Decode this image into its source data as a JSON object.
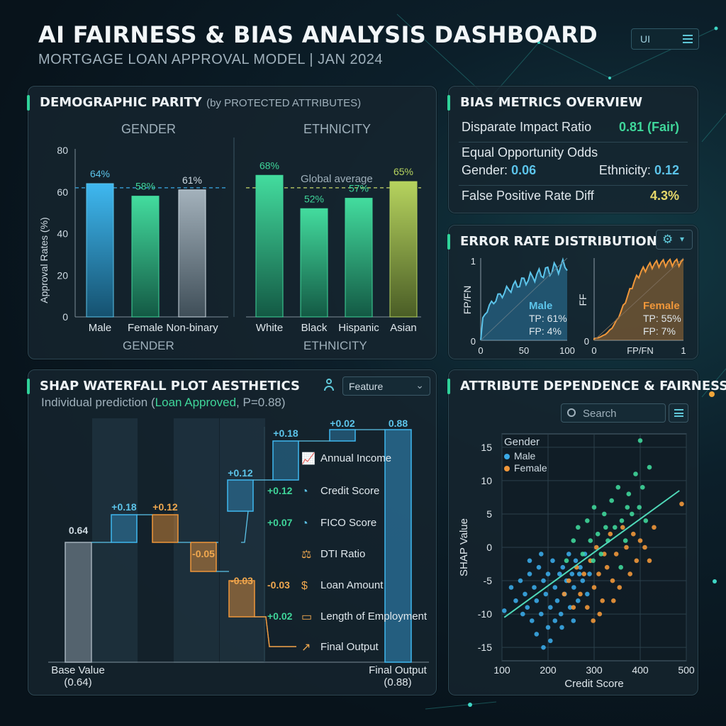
{
  "header": {
    "title": "AI FAIRNESS & BIAS ANALYSIS DASHBOARD",
    "subtitle": "MORTGAGE LOAN APPROVAL MODEL | JAN 2024",
    "ui_label": "UI"
  },
  "demographic": {
    "title": "DEMOGRAPHIC PARITY",
    "title_note": "(by PROTECTED ATTRIBUTES)",
    "gender_head": "GENDER",
    "ethnicity_head": "ETHNICITY",
    "gender_foot": "GENDER",
    "ethnicity_foot": "ETHNICITY",
    "ylabel": "Approval Rates (%)",
    "global_label": "Global average"
  },
  "bias": {
    "title": "BIAS METRICS OVERVIEW",
    "dir_label": "Disparate Impact Ratio",
    "dir_value": "0.81 (Fair)",
    "eoo_label": "Equal Opportunity Odds",
    "gender_label": "Gender:",
    "gender_value": "0.06",
    "eth_label": "Ethnicity:",
    "eth_value": "0.12",
    "fpr_label": "False Positive Rate Diff",
    "fpr_value": "4.3%"
  },
  "error": {
    "title": "ERROR RATE DISTRIBUTION",
    "left": {
      "ylabel": "FP/FN",
      "group": "Male",
      "tp": "TP: 61%",
      "fp": "FP: 4%",
      "x0": "0",
      "x1": "50",
      "x2": "100",
      "y0": "0",
      "ytop": "1"
    },
    "right": {
      "ylabel": "FF",
      "group": "Female",
      "tp": "TP: 55%",
      "fp": "FP: 7%",
      "x0": "0",
      "xlab": "FP/FN",
      "x2": "1",
      "y0": "0"
    }
  },
  "shap": {
    "title": "SHAP WATERFALL PLOT AESTHETICS",
    "subtitle_pre": "Individual prediction (",
    "subtitle_hl": "Loan Approved",
    "subtitle_post": ", P=0.88)",
    "dropdown": "Feature",
    "base_label": "Base Value",
    "base_value": "(0.64)",
    "final_label": "Final Output",
    "final_value": "(0.88)",
    "bars": [
      {
        "label": "0.64",
        "kind": "base"
      },
      {
        "label": "+0.18",
        "kind": "pos"
      },
      {
        "label": "+0.12",
        "kind": "neg"
      },
      {
        "label": "-0.05",
        "kind": "neg"
      },
      {
        "label": "-0.03",
        "kind": "neg"
      },
      {
        "label": "+0.12",
        "kind": "pos"
      },
      {
        "label": "+0.18",
        "kind": "pos"
      },
      {
        "label": "+0.02",
        "kind": "pos"
      },
      {
        "label": "0.88",
        "kind": "final"
      }
    ],
    "features": [
      {
        "value": "",
        "name": "Annual Income",
        "icon": "chart-icon"
      },
      {
        "value": "+0.12",
        "name": "Credit Score",
        "icon": "gauge-icon"
      },
      {
        "value": "+0.07",
        "name": "FICO Score",
        "icon": "gauge-icon"
      },
      {
        "value": "",
        "name": "DTI Ratio",
        "icon": "scale-icon"
      },
      {
        "value": "-0.03",
        "name": "Loan Amount",
        "icon": "money-bag-icon"
      },
      {
        "value": "+0.02",
        "name": "Length of Employment",
        "icon": "briefcase-icon"
      },
      {
        "value": "",
        "name": "Final Output",
        "icon": "rocket-icon"
      }
    ]
  },
  "attr": {
    "title": "ATTRIBUTE DEPENDENCE & FAIRNESS",
    "search_placeholder": "Search",
    "legend_title": "Gender",
    "legend_male": "Male",
    "legend_female": "Female",
    "xlabel": "Credit Score",
    "ylabel": "SHAP Value"
  },
  "colors": {
    "blue": "#3aa9e6",
    "green": "#3fd69a",
    "orange": "#f0973a",
    "gray": "#8a9aa6",
    "olive": "#a4c45a"
  },
  "chart_data": [
    {
      "type": "bar",
      "title": "GENDER",
      "xlabel": "GENDER",
      "ylabel": "Approval Rates (%)",
      "categories": [
        "Male",
        "Female",
        "Non-binary"
      ],
      "values": [
        64,
        58,
        61
      ],
      "ylim": [
        0,
        80
      ],
      "yticks": [
        0,
        20,
        40,
        60,
        80
      ],
      "global_average": 62
    },
    {
      "type": "bar",
      "title": "ETHNICITY",
      "xlabel": "ETHNICITY",
      "categories": [
        "White",
        "Black",
        "Hispanic",
        "Asian"
      ],
      "values": [
        68,
        52,
        57,
        65
      ],
      "ylim": [
        0,
        80
      ],
      "global_average": 62
    },
    {
      "type": "scatter",
      "xlabel": "Credit Score",
      "ylabel": "SHAP Value",
      "xlim": [
        100,
        500
      ],
      "ylim": [
        -17,
        17
      ],
      "xticks": [
        100,
        200,
        300,
        400,
        500
      ],
      "yticks": [
        -15,
        -10,
        -5,
        0,
        5,
        10,
        15
      ],
      "series": [
        {
          "name": "Male",
          "color": "#3aa9e6",
          "points": [
            [
              105,
              -9.5
            ],
            [
              120,
              -6
            ],
            [
              130,
              -8
            ],
            [
              140,
              -5
            ],
            [
              150,
              -7
            ],
            [
              155,
              -9
            ],
            [
              160,
              -4
            ],
            [
              165,
              -11
            ],
            [
              170,
              -6
            ],
            [
              175,
              -8
            ],
            [
              180,
              -3
            ],
            [
              185,
              -10
            ],
            [
              190,
              -5
            ],
            [
              195,
              -7
            ],
            [
              200,
              -12
            ],
            [
              200,
              -4
            ],
            [
              205,
              -9
            ],
            [
              210,
              -2
            ],
            [
              215,
              -6
            ],
            [
              220,
              -8
            ],
            [
              225,
              -4
            ],
            [
              228,
              -10
            ],
            [
              232,
              -3
            ],
            [
              236,
              -7
            ],
            [
              240,
              -5
            ],
            [
              245,
              -1
            ],
            [
              248,
              -9
            ],
            [
              252,
              -4
            ],
            [
              256,
              -6
            ],
            [
              260,
              -2
            ],
            [
              265,
              -8
            ],
            [
              270,
              -3
            ],
            [
              275,
              -5
            ],
            [
              280,
              -1
            ],
            [
              285,
              -7
            ],
            [
              290,
              -4
            ],
            [
              175,
              -13
            ],
            [
              190,
              -15
            ],
            [
              230,
              -12
            ],
            [
              160,
              -2
            ],
            [
              145,
              -10
            ],
            [
              205,
              -14
            ],
            [
              255,
              -11
            ],
            [
              268,
              -4
            ],
            [
              215,
              -11
            ],
            [
              185,
              -1
            ]
          ]
        },
        {
          "name": "Female",
          "color": "#f0973a",
          "points": [
            [
              235,
              -7
            ],
            [
              245,
              -5
            ],
            [
              255,
              -9
            ],
            [
              262,
              -3
            ],
            [
              270,
              -7
            ],
            [
              278,
              -4
            ],
            [
              285,
              -9
            ],
            [
              292,
              -2
            ],
            [
              300,
              -6
            ],
            [
              305,
              0
            ],
            [
              310,
              -4
            ],
            [
              318,
              -8
            ],
            [
              322,
              -1
            ],
            [
              328,
              -3
            ],
            [
              335,
              2
            ],
            [
              340,
              -5
            ],
            [
              348,
              -1
            ],
            [
              355,
              -6
            ],
            [
              362,
              3
            ],
            [
              370,
              0
            ],
            [
              378,
              -4
            ],
            [
              385,
              2
            ],
            [
              392,
              -2
            ],
            [
              400,
              1
            ],
            [
              410,
              0
            ],
            [
              420,
              -2
            ],
            [
              430,
              3
            ],
            [
              490,
              6.5
            ],
            [
              312,
              -10
            ],
            [
              342,
              -8
            ],
            [
              298,
              -11
            ]
          ]
        },
        {
          "name": "green",
          "color": "#3fd69a",
          "points": [
            [
              240,
              -2
            ],
            [
              255,
              1
            ],
            [
              265,
              3
            ],
            [
              275,
              -1
            ],
            [
              285,
              4
            ],
            [
              292,
              1
            ],
            [
              300,
              6
            ],
            [
              308,
              2
            ],
            [
              315,
              -1
            ],
            [
              322,
              5
            ],
            [
              330,
              1
            ],
            [
              338,
              7
            ],
            [
              345,
              3
            ],
            [
              352,
              9
            ],
            [
              360,
              4
            ],
            [
              368,
              1
            ],
            [
              375,
              8
            ],
            [
              382,
              5
            ],
            [
              390,
              11
            ],
            [
              398,
              6
            ],
            [
              405,
              9
            ],
            [
              412,
              4
            ],
            [
              420,
              12
            ],
            [
              400,
              16
            ],
            [
              325,
              3
            ],
            [
              358,
              -3
            ],
            [
              372,
              6
            ],
            [
              298,
              -2
            ]
          ]
        }
      ],
      "trend": [
        [
          105,
          -10.5
        ],
        [
          485,
          8.5
        ]
      ]
    }
  ]
}
